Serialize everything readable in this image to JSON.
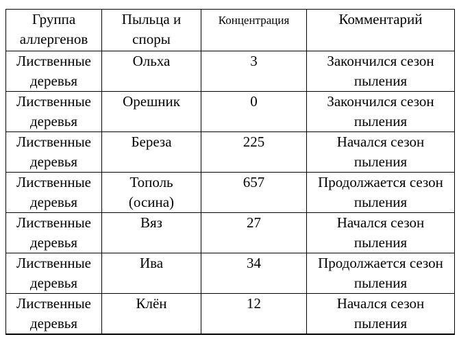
{
  "table": {
    "headers": [
      "Группа аллергенов",
      "Пыльца и споры",
      "Концентрация",
      "Комментарий"
    ],
    "rows": [
      {
        "group": "Лиственные деревья",
        "pollen": "Ольха",
        "concentration": "3",
        "comment": "Закончился сезон пыления"
      },
      {
        "group": "Лиственные деревья",
        "pollen": "Орешник",
        "concentration": "0",
        "comment": "Закончился сезон пыления"
      },
      {
        "group": "Лиственные деревья",
        "pollen": "Береза",
        "concentration": "225",
        "comment": "Начался сезон пыления"
      },
      {
        "group": "Лиственные деревья",
        "pollen": "Тополь (осина)",
        "concentration": "657",
        "comment": "Продолжается сезон пыления"
      },
      {
        "group": "Лиственные деревья",
        "pollen": "Вяз",
        "concentration": "27",
        "comment": "Начался сезон пыления"
      },
      {
        "group": "Лиственные деревья",
        "pollen": "Ива",
        "concentration": "34",
        "comment": "Продолжается сезон пыления"
      },
      {
        "group": "Лиственные деревья",
        "pollen": "Клён",
        "concentration": "12",
        "comment": "Начался сезон пыления"
      }
    ],
    "colors": {
      "border": "#000000",
      "text": "#000000",
      "background": "#ffffff"
    }
  }
}
